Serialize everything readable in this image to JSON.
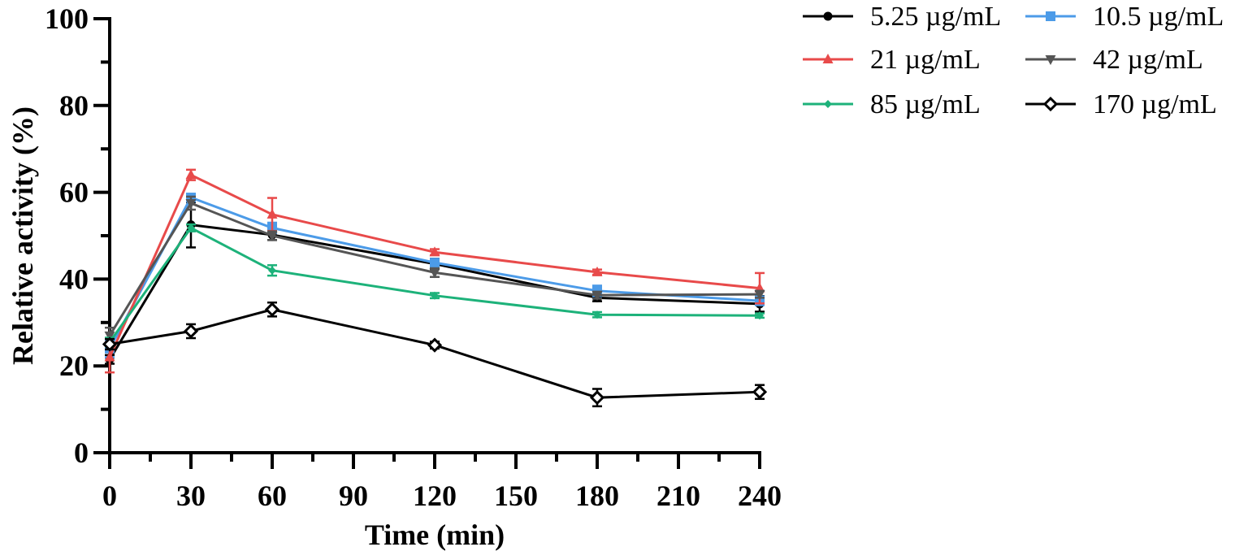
{
  "chart_data": {
    "type": "line",
    "title": "",
    "xlabel": "Time (min)",
    "ylabel": "Relative activity (%)",
    "xlim": [
      0,
      240
    ],
    "ylim": [
      0,
      100
    ],
    "x": [
      0,
      30,
      60,
      120,
      180,
      240
    ],
    "x_ticks": [
      0,
      30,
      60,
      90,
      120,
      150,
      180,
      210,
      240
    ],
    "x_tick_labels": [
      "0",
      "30",
      "60",
      "90",
      "120",
      "150",
      "180",
      "210",
      "240"
    ],
    "y_ticks": [
      0,
      20,
      40,
      60,
      80,
      100
    ],
    "y_tick_labels": [
      "0",
      "20",
      "40",
      "60",
      "80",
      "100"
    ],
    "grid": false,
    "legend_position": "top-right",
    "series": [
      {
        "name": "5.25 µg/mL",
        "color": "#000000",
        "marker": "circle",
        "values": [
          21.5,
          52.5,
          50.2,
          43.5,
          35.7,
          34.3
        ],
        "errors": [
          1.0,
          5.2,
          1.2,
          1.2,
          0.8,
          1.8
        ]
      },
      {
        "name": "10.5 µg/mL",
        "color": "#4c9be8",
        "marker": "square",
        "values": [
          24.0,
          58.8,
          51.8,
          43.8,
          37.3,
          35.0
        ],
        "errors": [
          2.0,
          0.8,
          1.2,
          0.8,
          1.2,
          1.0
        ]
      },
      {
        "name": "21 µg/mL",
        "color": "#e84a4a",
        "marker": "triangle-up",
        "values": [
          22.0,
          64.0,
          54.9,
          46.2,
          41.6,
          37.9
        ],
        "errors": [
          3.5,
          1.2,
          3.8,
          0.7,
          0.6,
          3.5
        ]
      },
      {
        "name": "42 µg/mL",
        "color": "#555555",
        "marker": "triangle-down",
        "values": [
          27.0,
          57.5,
          50.0,
          41.5,
          36.3,
          36.5
        ],
        "errors": [
          1.8,
          1.5,
          1.0,
          1.0,
          0.8,
          0.8
        ]
      },
      {
        "name": "85 µg/mL",
        "color": "#1db27a",
        "marker": "diamond-small",
        "values": [
          25.5,
          51.8,
          42.0,
          36.2,
          31.8,
          31.6
        ],
        "errors": [
          1.0,
          0.8,
          1.2,
          0.6,
          0.6,
          0.5
        ]
      },
      {
        "name": "170 µg/mL",
        "color": "#000000",
        "marker": "diamond-open",
        "values": [
          25.0,
          28.0,
          33.0,
          24.8,
          12.7,
          14.0
        ],
        "errors": [
          1.2,
          1.6,
          1.6,
          0.8,
          2.0,
          1.6
        ]
      }
    ]
  }
}
